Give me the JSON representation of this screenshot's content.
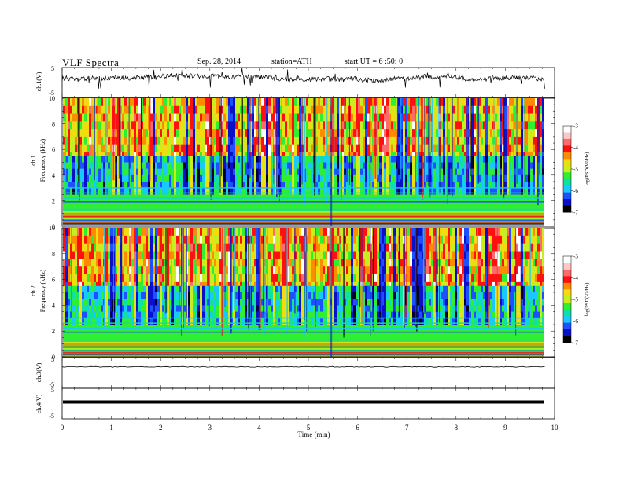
{
  "header": {
    "title": "VLF Spectra",
    "date": "Sep. 28, 2014",
    "station": "station=ATH",
    "start": "start UT = 6 :50: 0"
  },
  "chart_data": [
    {
      "type": "line",
      "panel": "ch1-waveform",
      "ylabel": "ch.1(V)",
      "ylim": [
        -5,
        5
      ],
      "yticks": [
        "5",
        "-5"
      ],
      "xlim": [
        0,
        10
      ],
      "signal": "noisy waveform around +1.5 V, roughly 0 to 3 V, with spikes to -0.5 and 5"
    },
    {
      "type": "heatmap",
      "panel": "ch1-spectrogram",
      "ylabel": "ch.1 Frequency (kHz)",
      "ylim": [
        0,
        10
      ],
      "yticks": [
        0,
        2,
        4,
        6,
        8,
        10
      ],
      "xlim": [
        0,
        9.8
      ],
      "colorbar": {
        "label": "log(PSD(V²/Hz)",
        "range": [
          -7,
          -3
        ],
        "ticks": [
          "-3",
          "-4",
          "-5",
          "-6",
          "-7"
        ]
      }
    },
    {
      "type": "heatmap",
      "panel": "ch2-spectrogram",
      "ylabel": "ch.2 Frequency (kHz)",
      "ylim": [
        0,
        10
      ],
      "yticks": [
        0,
        2,
        4,
        6,
        8,
        10
      ],
      "xlim": [
        0,
        9.8
      ],
      "colorbar": {
        "label": "log(PSD(V²/Hz)",
        "range": [
          -7,
          -3
        ],
        "ticks": [
          "-3",
          "-4",
          "-5",
          "-6",
          "-7"
        ]
      }
    },
    {
      "type": "line",
      "panel": "ch3-waveform",
      "ylabel": "ch.3(V)",
      "ylim": [
        -5,
        5
      ],
      "yticks": [
        "5",
        "-5"
      ],
      "signal": "flat line near +2 V"
    },
    {
      "type": "line",
      "panel": "ch4-waveform",
      "ylabel": "ch.4(V)",
      "ylim": [
        -5,
        5
      ],
      "yticks": [
        "5",
        "-5"
      ],
      "signal": "thick flat line near +1 V"
    }
  ],
  "xaxis": {
    "label": "Time (min)",
    "ticks": [
      "0",
      "1",
      "2",
      "3",
      "4",
      "5",
      "6",
      "7",
      "8",
      "9",
      "10"
    ]
  },
  "colormap": [
    "#000000",
    "#0a10c8",
    "#1e50ff",
    "#19c8ff",
    "#10e0a0",
    "#30ee30",
    "#c8ee20",
    "#f0dc10",
    "#ff8c00",
    "#ff1010",
    "#ff6a6a",
    "#ffc8c8",
    "#ffffff"
  ]
}
